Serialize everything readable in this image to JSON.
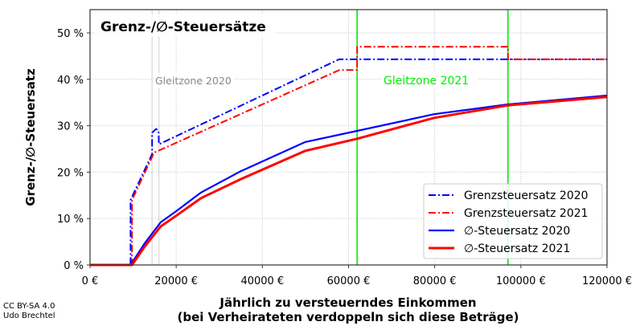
{
  "chart_data": {
    "type": "line",
    "title": "Grenz-/∅-Steuersätze",
    "xlabel": "Jährlich zu versteuerndes Einkommen",
    "xlabel2": "(bei Verheirateten verdoppeln sich diese Beträge)",
    "ylabel": "Grenz-/∅-Steuersatz",
    "xlim": [
      0,
      120000
    ],
    "ylim": [
      0,
      52
    ],
    "x_ticks": [
      0,
      20000,
      40000,
      60000,
      80000,
      100000,
      120000
    ],
    "x_tick_labels": [
      "0 €",
      "20000 €",
      "40000 €",
      "60000 €",
      "80000 €",
      "100000 €",
      "120000 €"
    ],
    "y_ticks": [
      0,
      10,
      20,
      30,
      40,
      50
    ],
    "y_tick_labels": [
      "0 %",
      "10 %",
      "20 %",
      "30 %",
      "40 %",
      "50 %"
    ],
    "grid": true,
    "legend_position": "bottom-right",
    "annotations": [
      {
        "text": "Gleitzone 2020",
        "color": "#888888",
        "lines_x": [
          14400,
          16000
        ]
      },
      {
        "text": "Gleitzone 2021",
        "color": "#00ee00",
        "lines_x": [
          62000,
          97000
        ]
      }
    ],
    "series": [
      {
        "name": "Grenzsteuersatz 2020",
        "color": "#0000ff",
        "style": "dashdot",
        "points": [
          [
            0,
            0
          ],
          [
            9408,
            0
          ],
          [
            9408,
            14
          ],
          [
            14400,
            23.9
          ],
          [
            14400,
            28.5
          ],
          [
            15300,
            29.3
          ],
          [
            15900,
            29.0
          ],
          [
            16000,
            26.0
          ],
          [
            57800,
            44.31
          ],
          [
            120000,
            44.31
          ]
        ]
      },
      {
        "name": "Grenzsteuersatz 2021",
        "color": "#ff0000",
        "style": "dashdot",
        "points": [
          [
            0,
            0
          ],
          [
            9744,
            0
          ],
          [
            9744,
            14
          ],
          [
            14870,
            24.2
          ],
          [
            57900,
            42
          ],
          [
            62000,
            42
          ],
          [
            62000,
            47.0
          ],
          [
            97000,
            47.0
          ],
          [
            97000,
            44.31
          ],
          [
            120000,
            44.31
          ]
        ]
      },
      {
        "name": "∅-Steuersatz 2020",
        "color": "#0000ff",
        "style": "solid",
        "points": [
          [
            0,
            0
          ],
          [
            9408,
            0
          ],
          [
            12700,
            4.7
          ],
          [
            16400,
            9.2
          ],
          [
            20000,
            11.6
          ],
          [
            25750,
            15.6
          ],
          [
            35000,
            20.2
          ],
          [
            50000,
            26.5
          ],
          [
            62000,
            28.9
          ],
          [
            79900,
            32.5
          ],
          [
            97000,
            34.6
          ],
          [
            120000,
            36.5
          ]
        ]
      },
      {
        "name": "∅-Steuersatz 2021",
        "color": "#ff0000",
        "style": "solid",
        "points": [
          [
            0,
            0
          ],
          [
            9744,
            0
          ],
          [
            12700,
            4.0
          ],
          [
            16400,
            8.3
          ],
          [
            20000,
            10.6
          ],
          [
            25750,
            14.4
          ],
          [
            35000,
            18.5
          ],
          [
            50000,
            24.6
          ],
          [
            62000,
            27.2
          ],
          [
            79900,
            31.7
          ],
          [
            97000,
            34.4
          ],
          [
            120000,
            36.2
          ]
        ]
      }
    ]
  },
  "credits": {
    "license": "CC BY-SA 4.0",
    "author": "Udo Brechtel"
  }
}
